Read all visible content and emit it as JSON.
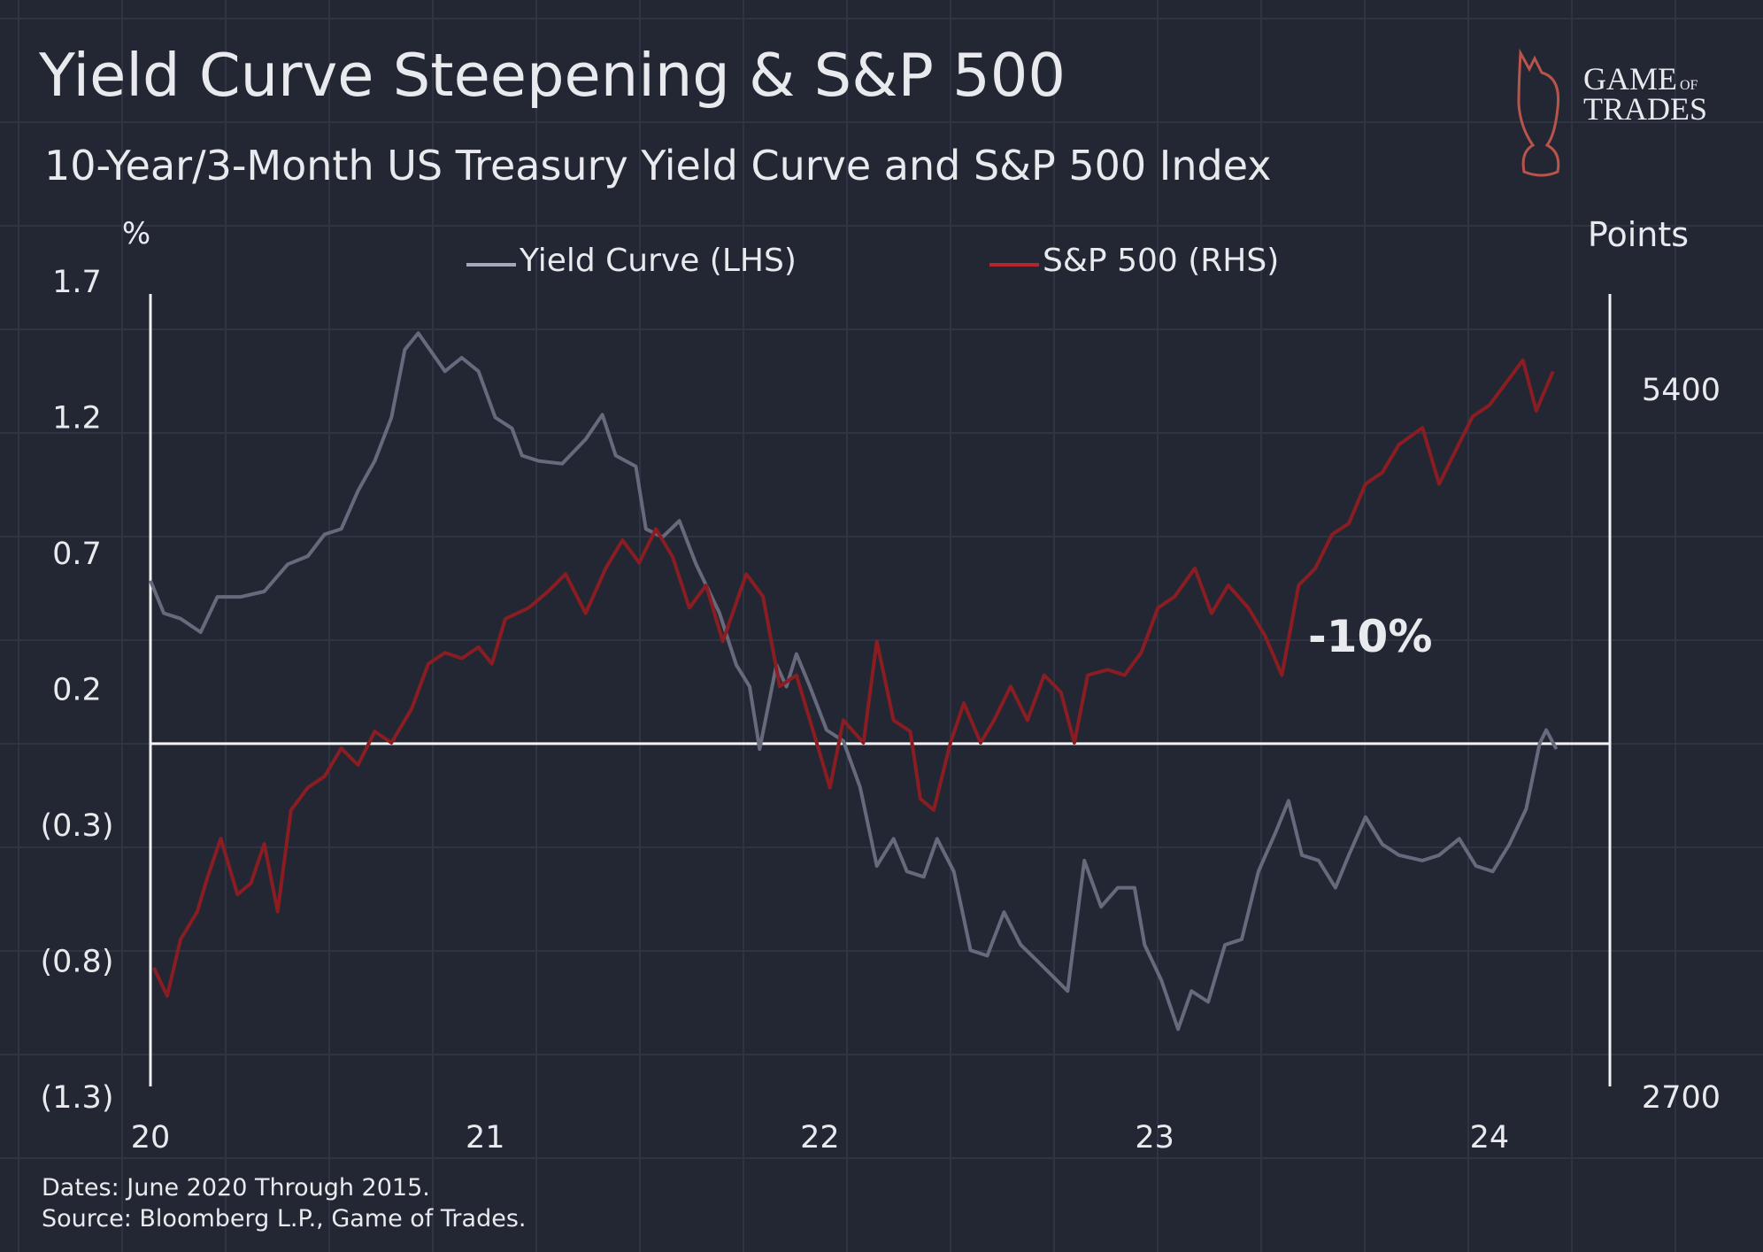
{
  "chart_data": {
    "type": "line",
    "title": "Yield Curve  Steepening & S&P 500",
    "subtitle": "10-Year/3-Month US Treasury Yield Curve and S&P 500 Index",
    "y_label": "%",
    "y2_label": "Points",
    "annotation": "-10%",
    "notes": [
      "Dates: June 2020 Through 2015.",
      "Source: Bloomberg L.P., Game of Trades."
    ],
    "logo": [
      "GAME",
      "OF",
      "TRADES"
    ],
    "xlim": [
      20,
      24.36
    ],
    "xticks": [
      20,
      21,
      22,
      23,
      24
    ],
    "ylim": [
      -1.3,
      1.7
    ],
    "yticks": [
      1.7,
      1.2,
      0.7,
      0.2,
      {
        "value": -0.3,
        "label": "(0.3)"
      },
      {
        "value": -0.8,
        "label": "(0.8)"
      },
      {
        "value": -1.3,
        "label": "(1.3)"
      }
    ],
    "y2lim": [
      2700,
      5812
    ],
    "y2ticks": [
      5400,
      2700
    ],
    "series": [
      {
        "name": "Yield Curve (LHS)",
        "color": "#666a7c",
        "legend_color": "#a3a8bb",
        "x": [
          20.0,
          20.04,
          20.09,
          20.15,
          20.2,
          20.27,
          20.34,
          20.41,
          20.47,
          20.52,
          20.57,
          20.62,
          20.67,
          20.72,
          20.76,
          20.8,
          20.84,
          20.88,
          20.93,
          20.98,
          21.03,
          21.08,
          21.11,
          21.16,
          21.23,
          21.3,
          21.35,
          21.39,
          21.45,
          21.48,
          21.53,
          21.58,
          21.63,
          21.7,
          21.75,
          21.79,
          21.82,
          21.87,
          21.9,
          21.93,
          21.97,
          22.02,
          22.07,
          22.12,
          22.17,
          22.22,
          22.26,
          22.31,
          22.35,
          22.4,
          22.45,
          22.5,
          22.55,
          22.6,
          22.65,
          22.74,
          22.79,
          22.84,
          22.89,
          22.94,
          22.97,
          23.02,
          23.07,
          23.11,
          23.16,
          23.21,
          23.26,
          23.31,
          23.36,
          23.4,
          23.44,
          23.49,
          23.54,
          23.58,
          23.63,
          23.68,
          23.73,
          23.8,
          23.85,
          23.91,
          23.96,
          24.01,
          24.06,
          24.11,
          24.15,
          24.17,
          24.2
        ],
        "values": [
          0.6,
          0.48,
          0.46,
          0.41,
          0.54,
          0.54,
          0.56,
          0.66,
          0.69,
          0.77,
          0.79,
          0.93,
          1.04,
          1.2,
          1.45,
          1.51,
          1.44,
          1.37,
          1.42,
          1.37,
          1.2,
          1.16,
          1.06,
          1.04,
          1.03,
          1.12,
          1.21,
          1.06,
          1.02,
          0.79,
          0.76,
          0.82,
          0.66,
          0.48,
          0.29,
          0.21,
          -0.02,
          0.29,
          0.21,
          0.33,
          0.21,
          0.05,
          0.01,
          -0.16,
          -0.45,
          -0.35,
          -0.47,
          -0.49,
          -0.35,
          -0.47,
          -0.76,
          -0.78,
          -0.62,
          -0.74,
          -0.8,
          -0.91,
          -0.43,
          -0.6,
          -0.53,
          -0.53,
          -0.74,
          -0.87,
          -1.05,
          -0.91,
          -0.95,
          -0.74,
          -0.72,
          -0.47,
          -0.33,
          -0.21,
          -0.41,
          -0.43,
          -0.53,
          -0.41,
          -0.27,
          -0.37,
          -0.41,
          -0.43,
          -0.41,
          -0.35,
          -0.45,
          -0.47,
          -0.37,
          -0.24,
          0.0,
          0.05,
          -0.02
        ]
      },
      {
        "name": "S&P 500 (RHS)",
        "color": "#8a1d22",
        "legend_color": "#b3262b",
        "axis": "y2",
        "x": [
          20.01,
          20.05,
          20.09,
          20.14,
          20.17,
          20.21,
          20.26,
          20.3,
          20.34,
          20.38,
          20.42,
          20.47,
          20.52,
          20.57,
          20.62,
          20.67,
          20.72,
          20.78,
          20.83,
          20.88,
          20.93,
          20.98,
          21.02,
          21.06,
          21.13,
          21.19,
          21.24,
          21.3,
          21.36,
          21.41,
          21.46,
          21.51,
          21.56,
          21.61,
          21.66,
          21.71,
          21.78,
          21.83,
          21.88,
          21.93,
          21.98,
          22.03,
          22.07,
          22.13,
          22.17,
          22.22,
          22.27,
          22.3,
          22.34,
          22.39,
          22.43,
          22.48,
          22.52,
          22.57,
          22.62,
          22.67,
          22.72,
          22.76,
          22.8,
          22.86,
          22.91,
          22.96,
          23.01,
          23.06,
          23.12,
          23.17,
          23.22,
          23.28,
          23.33,
          23.38,
          23.43,
          23.48,
          23.53,
          23.58,
          23.63,
          23.68,
          23.73,
          23.8,
          23.85,
          23.9,
          23.95,
          24.0,
          24.05,
          24.1,
          24.14,
          24.19
        ],
        "values": [
          3194,
          3086,
          3301,
          3408,
          3537,
          3687,
          3473,
          3516,
          3666,
          3408,
          3795,
          3881,
          3924,
          4031,
          3967,
          4095,
          4052,
          4181,
          4353,
          4396,
          4374,
          4417,
          4353,
          4525,
          4567,
          4632,
          4696,
          4546,
          4718,
          4825,
          4739,
          4868,
          4761,
          4567,
          4653,
          4439,
          4696,
          4610,
          4267,
          4310,
          4095,
          3881,
          4138,
          4052,
          4439,
          4138,
          4095,
          3838,
          3795,
          4052,
          4203,
          4052,
          4138,
          4267,
          4138,
          4310,
          4245,
          4052,
          4310,
          4331,
          4310,
          4396,
          4567,
          4610,
          4718,
          4546,
          4653,
          4567,
          4460,
          4310,
          4653,
          4718,
          4847,
          4889,
          5040,
          5083,
          5190,
          5254,
          5040,
          5169,
          5297,
          5340,
          5426,
          5512,
          5319,
          5469
        ]
      }
    ]
  }
}
